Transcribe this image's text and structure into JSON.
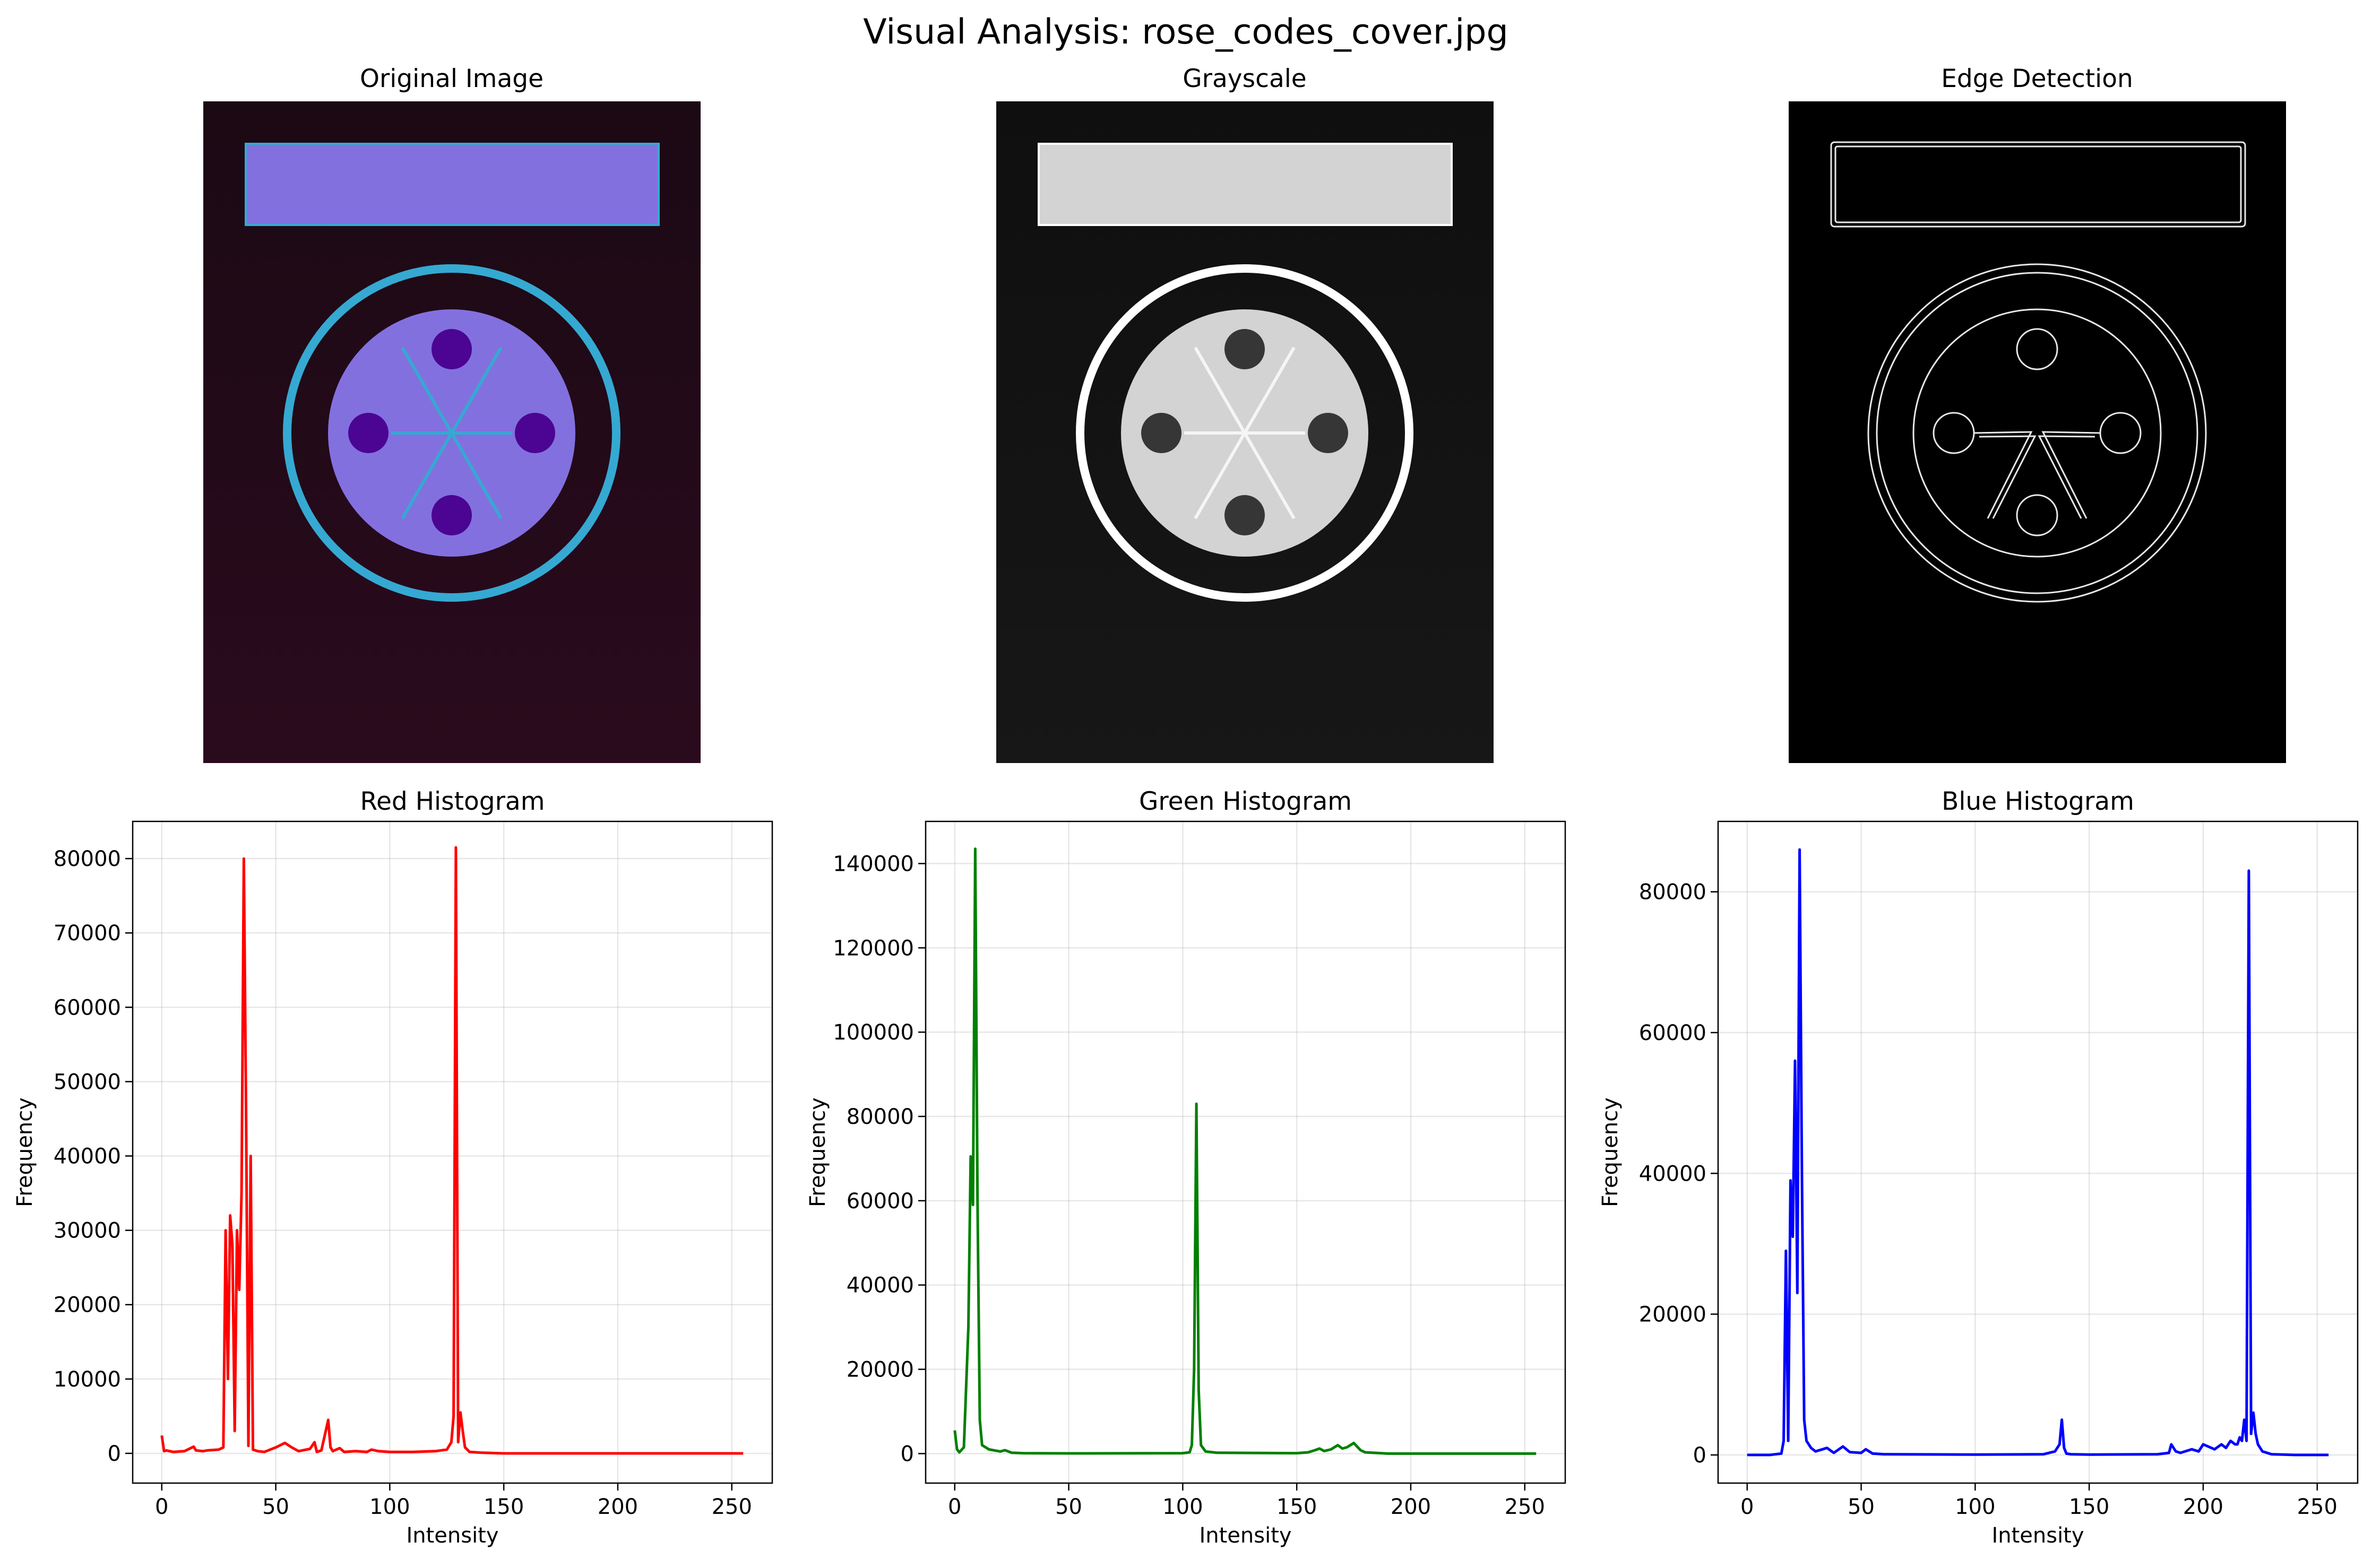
{
  "figure": {
    "suptitle": "Visual Analysis: rose_codes_cover.jpg"
  },
  "images": [
    {
      "title": "Original Image"
    },
    {
      "title": "Grayscale"
    },
    {
      "title": "Edge Detection"
    }
  ],
  "chart_data": [
    {
      "type": "line",
      "title": "Red Histogram",
      "xlabel": "Intensity",
      "ylabel": "Frequency",
      "color": "#ff0000",
      "xlim": [
        -12.75,
        267.75
      ],
      "ylim": [
        -4000,
        85000
      ],
      "xticks": [
        0,
        50,
        100,
        150,
        200,
        250
      ],
      "yticks": [
        0,
        10000,
        20000,
        30000,
        40000,
        50000,
        60000,
        70000,
        80000
      ],
      "grid": true,
      "x": [
        0,
        1,
        2,
        5,
        10,
        14,
        15,
        18,
        20,
        25,
        27,
        28,
        29,
        30,
        31,
        32,
        33,
        34,
        35,
        36,
        37,
        38,
        39,
        40,
        42,
        45,
        50,
        54,
        57,
        60,
        65,
        67,
        68,
        70,
        73,
        74,
        75,
        78,
        80,
        85,
        90,
        92,
        95,
        100,
        110,
        120,
        125,
        127,
        128,
        129,
        130,
        131,
        132,
        133,
        135,
        140,
        150,
        200,
        255
      ],
      "y": [
        2400,
        300,
        400,
        200,
        300,
        900,
        400,
        300,
        400,
        500,
        800,
        30000,
        10000,
        32000,
        28000,
        3000,
        30000,
        22000,
        35000,
        80000,
        45000,
        1000,
        40000,
        500,
        300,
        200,
        800,
        1400,
        800,
        300,
        600,
        1500,
        200,
        400,
        4500,
        800,
        300,
        700,
        200,
        300,
        200,
        500,
        300,
        200,
        200,
        300,
        500,
        1500,
        5000,
        81500,
        1500,
        5500,
        3000,
        800,
        200,
        100,
        0,
        0,
        0
      ]
    },
    {
      "type": "line",
      "title": "Green Histogram",
      "xlabel": "Intensity",
      "ylabel": "Frequency",
      "color": "#008000",
      "xlim": [
        -12.75,
        267.75
      ],
      "ylim": [
        -7000,
        150000
      ],
      "xticks": [
        0,
        50,
        100,
        150,
        200,
        250
      ],
      "yticks": [
        0,
        20000,
        40000,
        60000,
        80000,
        100000,
        120000,
        140000
      ],
      "grid": true,
      "x": [
        0,
        1,
        2,
        4,
        6,
        7,
        8,
        9,
        10,
        11,
        12,
        15,
        20,
        22,
        25,
        30,
        50,
        100,
        103,
        104,
        105,
        106,
        107,
        108,
        110,
        115,
        150,
        155,
        158,
        160,
        162,
        165,
        168,
        170,
        172,
        175,
        178,
        180,
        190,
        255
      ],
      "y": [
        5500,
        1000,
        300,
        1500,
        30000,
        70500,
        59000,
        143500,
        60000,
        8000,
        2000,
        1000,
        500,
        800,
        200,
        100,
        50,
        100,
        300,
        2000,
        20000,
        83000,
        15000,
        2000,
        500,
        200,
        100,
        300,
        800,
        1200,
        600,
        1000,
        2000,
        1200,
        1500,
        2500,
        800,
        300,
        0,
        0
      ]
    },
    {
      "type": "line",
      "title": "Blue Histogram",
      "xlabel": "Intensity",
      "ylabel": "Frequency",
      "color": "#0000ff",
      "xlim": [
        -12.75,
        267.75
      ],
      "ylim": [
        -4000,
        90000
      ],
      "xticks": [
        0,
        50,
        100,
        150,
        200,
        250
      ],
      "yticks": [
        0,
        20000,
        40000,
        60000,
        80000
      ],
      "grid": true,
      "x": [
        0,
        10,
        15,
        16,
        17,
        18,
        19,
        20,
        21,
        22,
        23,
        24,
        25,
        26,
        28,
        30,
        35,
        38,
        42,
        45,
        50,
        52,
        55,
        60,
        100,
        130,
        135,
        137,
        138,
        139,
        140,
        142,
        150,
        180,
        185,
        186,
        188,
        190,
        195,
        198,
        200,
        205,
        208,
        210,
        212,
        214,
        215,
        216,
        217,
        218,
        219,
        220,
        221,
        222,
        223,
        224,
        226,
        230,
        240,
        255
      ],
      "y": [
        0,
        0,
        200,
        2000,
        29000,
        2000,
        39000,
        31000,
        56000,
        23000,
        86000,
        40000,
        5000,
        2000,
        1000,
        500,
        1000,
        300,
        1200,
        400,
        300,
        800,
        200,
        100,
        50,
        100,
        500,
        1500,
        5000,
        1000,
        200,
        100,
        50,
        100,
        300,
        1500,
        500,
        300,
        800,
        500,
        1500,
        800,
        1500,
        1000,
        2000,
        1500,
        1500,
        2500,
        2000,
        5000,
        2000,
        83000,
        3000,
        6000,
        3000,
        1500,
        500,
        100,
        0,
        0
      ]
    }
  ]
}
